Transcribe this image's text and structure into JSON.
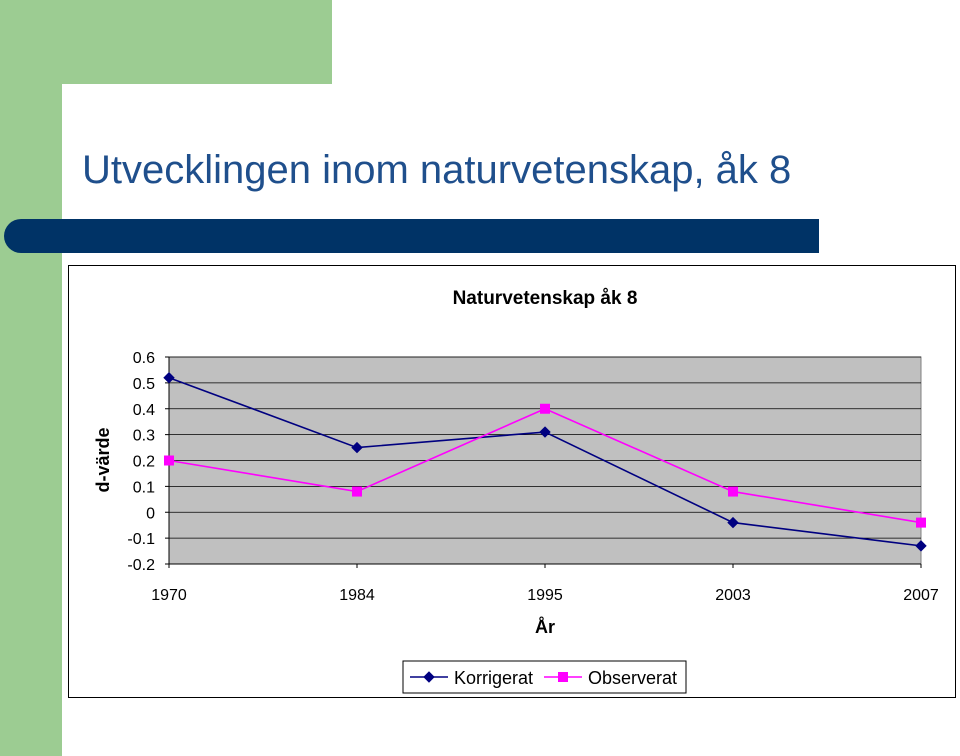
{
  "slide": {
    "title": "Utvecklingen inom naturvetenskap, åk 8"
  },
  "colors": {
    "accent_green": "#9ccc92",
    "title_blue": "#1f4f8c",
    "bar_navy": "#003366",
    "plot_bg": "#c0c0c0",
    "korrigerat": "#000080",
    "observerat": "#ff00ff"
  },
  "chart_data": {
    "type": "line",
    "title": "Naturvetenskap åk 8",
    "xlabel": "År",
    "ylabel": "d-värde",
    "categories": [
      "1970",
      "1984",
      "1995",
      "2003",
      "2007"
    ],
    "ylim": [
      -0.2,
      0.6
    ],
    "yticks": [
      0.6,
      0.5,
      0.4,
      0.3,
      0.2,
      0.1,
      0,
      -0.1,
      -0.2
    ],
    "ytick_labels": [
      "0.6",
      "0.5",
      "0.4",
      "0.3",
      "0.2",
      "0.1",
      "0",
      "-0.1",
      "-0.2"
    ],
    "grid": true,
    "legend_position": "bottom",
    "series": [
      {
        "name": "Korrigerat",
        "values": [
          0.52,
          0.25,
          0.31,
          -0.04,
          -0.13
        ],
        "marker": "diamond",
        "color": "#000080"
      },
      {
        "name": "Observerat",
        "values": [
          0.2,
          0.08,
          0.4,
          0.08,
          -0.04
        ],
        "marker": "square",
        "color": "#ff00ff"
      }
    ]
  }
}
